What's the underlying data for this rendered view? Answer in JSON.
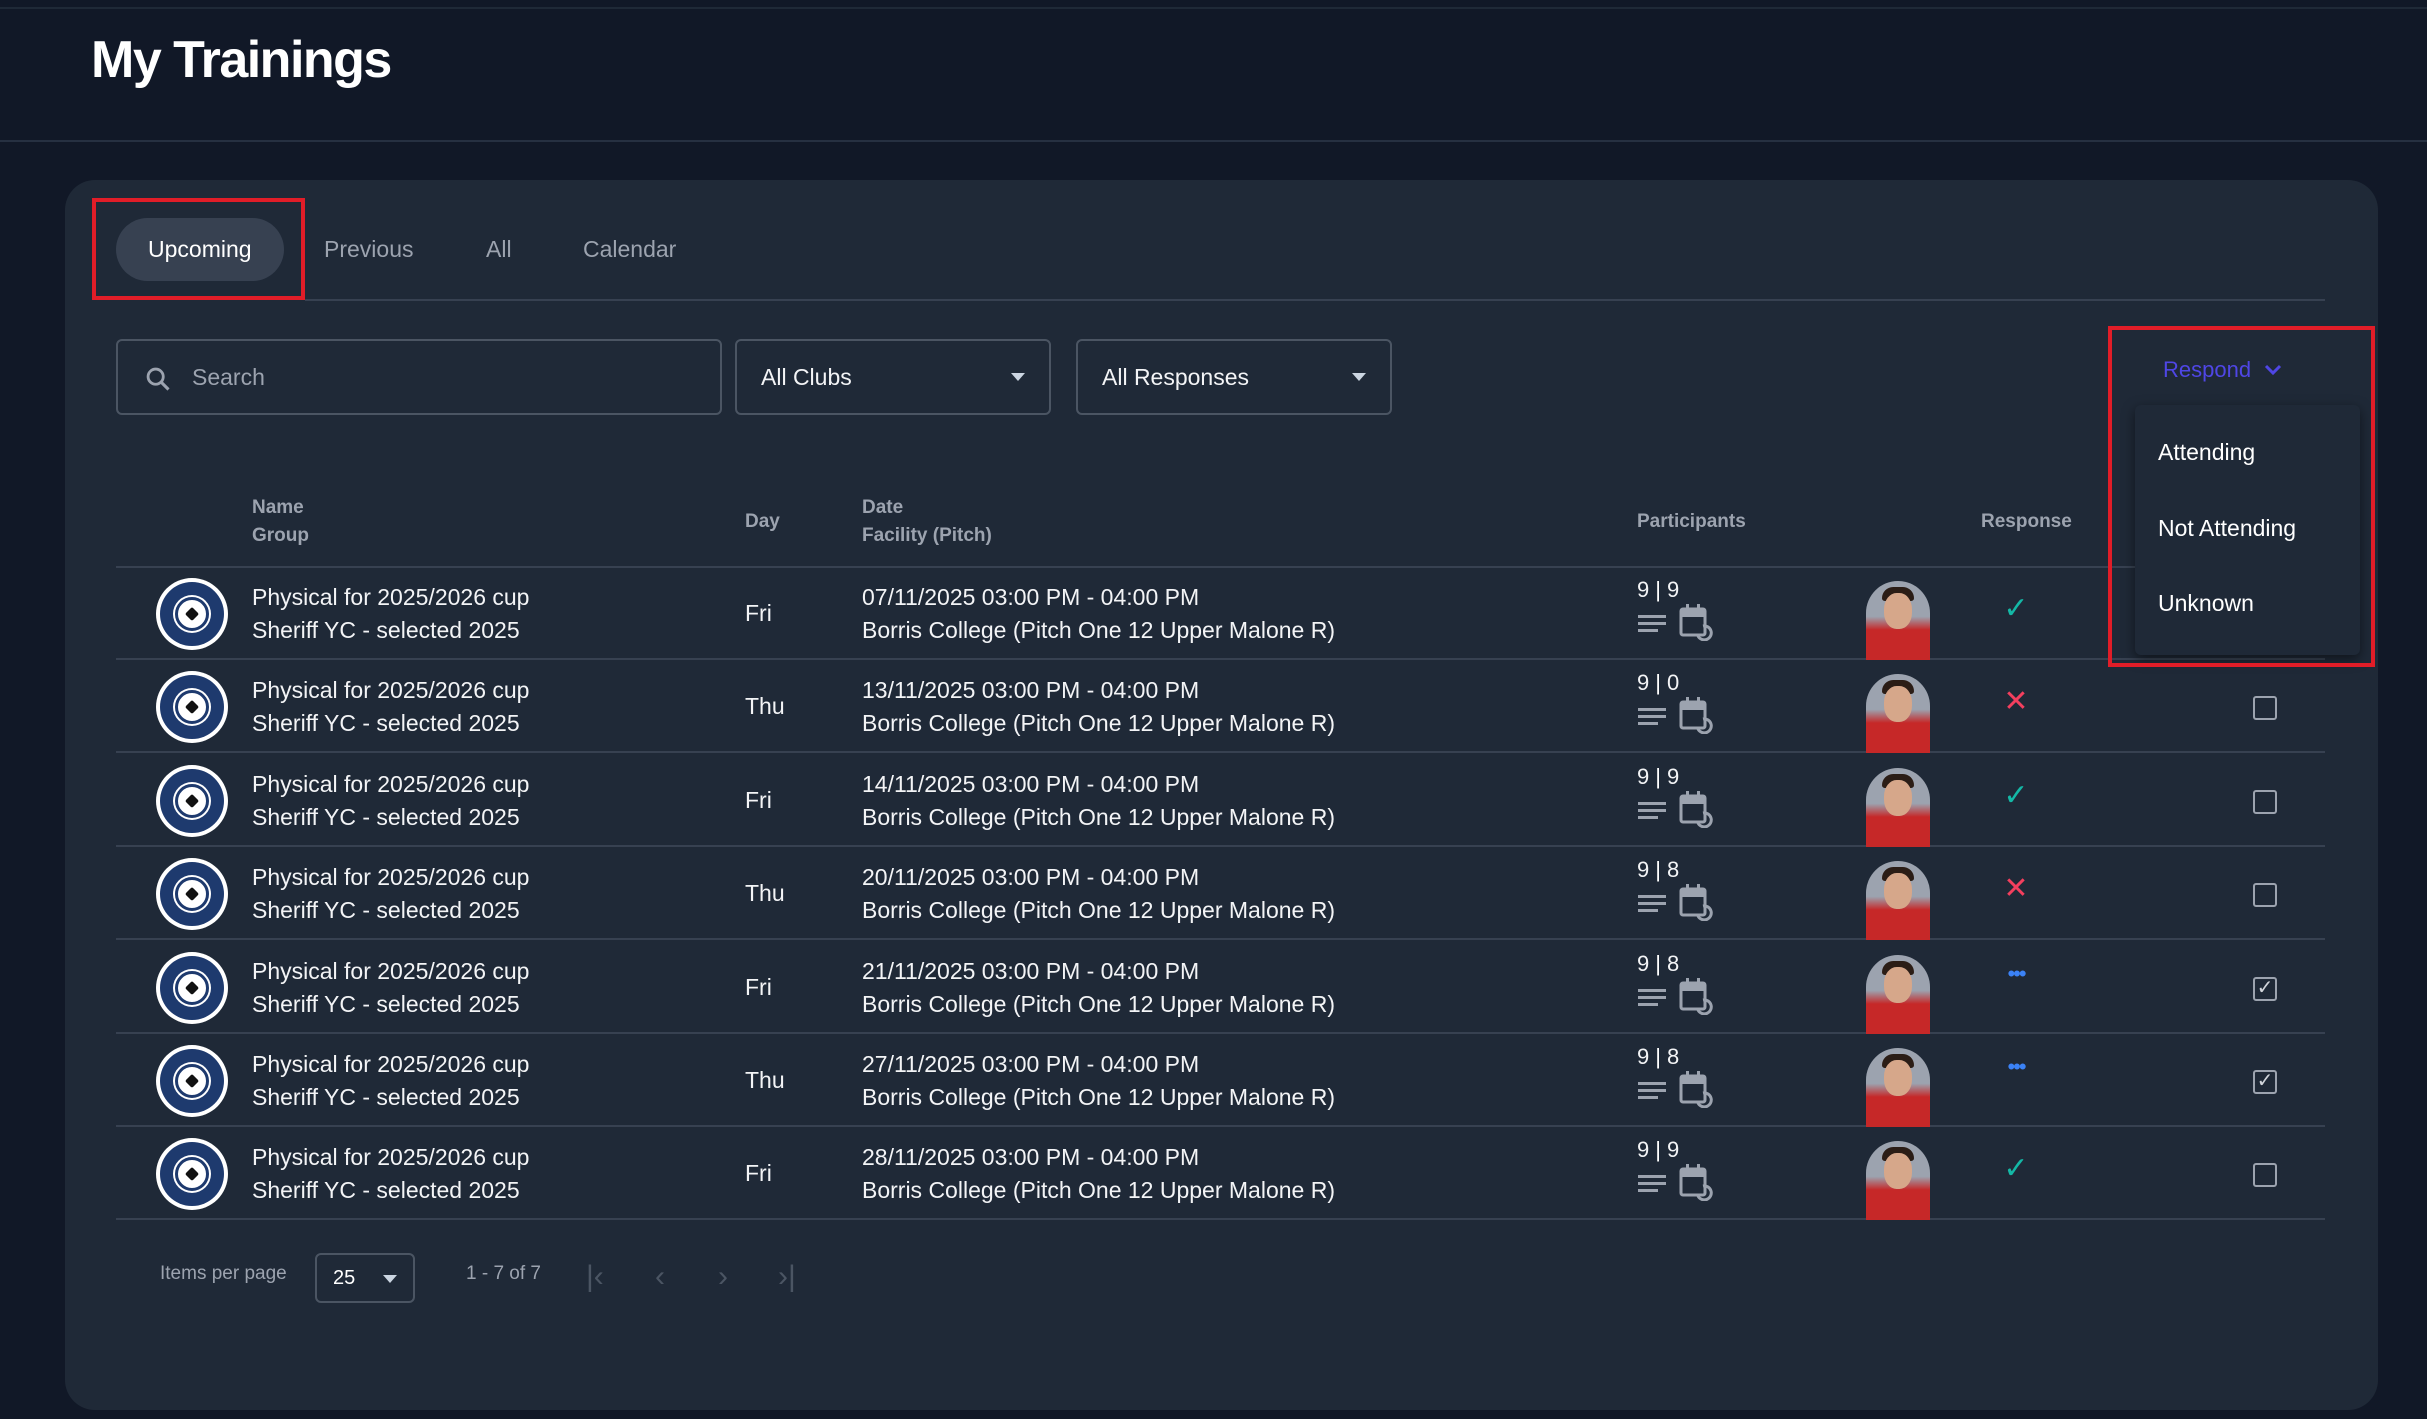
{
  "header": {
    "title": "My Trainings"
  },
  "tabs": [
    {
      "label": "Upcoming",
      "active": true
    },
    {
      "label": "Previous"
    },
    {
      "label": "All"
    },
    {
      "label": "Calendar"
    }
  ],
  "filters": {
    "search_placeholder": "Search",
    "clubs": "All Clubs",
    "responses": "All Responses"
  },
  "respond": {
    "label": "Respond",
    "color": "#4f46e5",
    "options": [
      "Attending",
      "Not Attending",
      "Unknown"
    ]
  },
  "columns": {
    "name": "Name",
    "group": "Group",
    "day": "Day",
    "date": "Date",
    "facility": "Facility (Pitch)",
    "participants": "Participants",
    "response": "Response"
  },
  "rows": [
    {
      "name": "Physical for 2025/2026 cup",
      "group": "Sheriff YC - selected 2025",
      "day": "Fri",
      "date": "07/11/2025 03:00 PM - 04:00 PM",
      "facility": "Borris College (Pitch One 12 Upper Malone R)",
      "total": "9",
      "attending": "9",
      "response": "attending",
      "selected": false
    },
    {
      "name": "Physical for 2025/2026 cup",
      "group": "Sheriff YC - selected 2025",
      "day": "Thu",
      "date": "13/11/2025 03:00 PM - 04:00 PM",
      "facility": "Borris College (Pitch One 12 Upper Malone R)",
      "total": "9",
      "attending": "0",
      "response": "not-attending",
      "selected": false
    },
    {
      "name": "Physical for 2025/2026 cup",
      "group": "Sheriff YC - selected 2025",
      "day": "Fri",
      "date": "14/11/2025 03:00 PM - 04:00 PM",
      "facility": "Borris College (Pitch One 12 Upper Malone R)",
      "total": "9",
      "attending": "9",
      "response": "attending",
      "selected": false
    },
    {
      "name": "Physical for 2025/2026 cup",
      "group": "Sheriff YC - selected 2025",
      "day": "Thu",
      "date": "20/11/2025 03:00 PM - 04:00 PM",
      "facility": "Borris College (Pitch One 12 Upper Malone R)",
      "total": "9",
      "attending": "8",
      "response": "not-attending",
      "selected": false
    },
    {
      "name": "Physical for 2025/2026 cup",
      "group": "Sheriff YC - selected 2025",
      "day": "Fri",
      "date": "21/11/2025 03:00 PM - 04:00 PM",
      "facility": "Borris College (Pitch One 12 Upper Malone R)",
      "total": "9",
      "attending": "8",
      "response": "unknown",
      "selected": true
    },
    {
      "name": "Physical for 2025/2026 cup",
      "group": "Sheriff YC - selected 2025",
      "day": "Thu",
      "date": "27/11/2025 03:00 PM - 04:00 PM",
      "facility": "Borris College (Pitch One 12 Upper Malone R)",
      "total": "9",
      "attending": "8",
      "response": "unknown",
      "selected": true
    },
    {
      "name": "Physical for 2025/2026 cup",
      "group": "Sheriff YC - selected 2025",
      "day": "Fri",
      "date": "28/11/2025 03:00 PM - 04:00 PM",
      "facility": "Borris College (Pitch One 12 Upper Malone R)",
      "total": "9",
      "attending": "9",
      "response": "attending",
      "selected": false
    }
  ],
  "pagination": {
    "items_per_page_label": "Items per page",
    "page_size": "25",
    "range": "1 - 7 of 7"
  },
  "colors": {
    "attending": "#14b8a6",
    "not_attending": "#f43f5e",
    "unknown": "#3b82f6"
  }
}
